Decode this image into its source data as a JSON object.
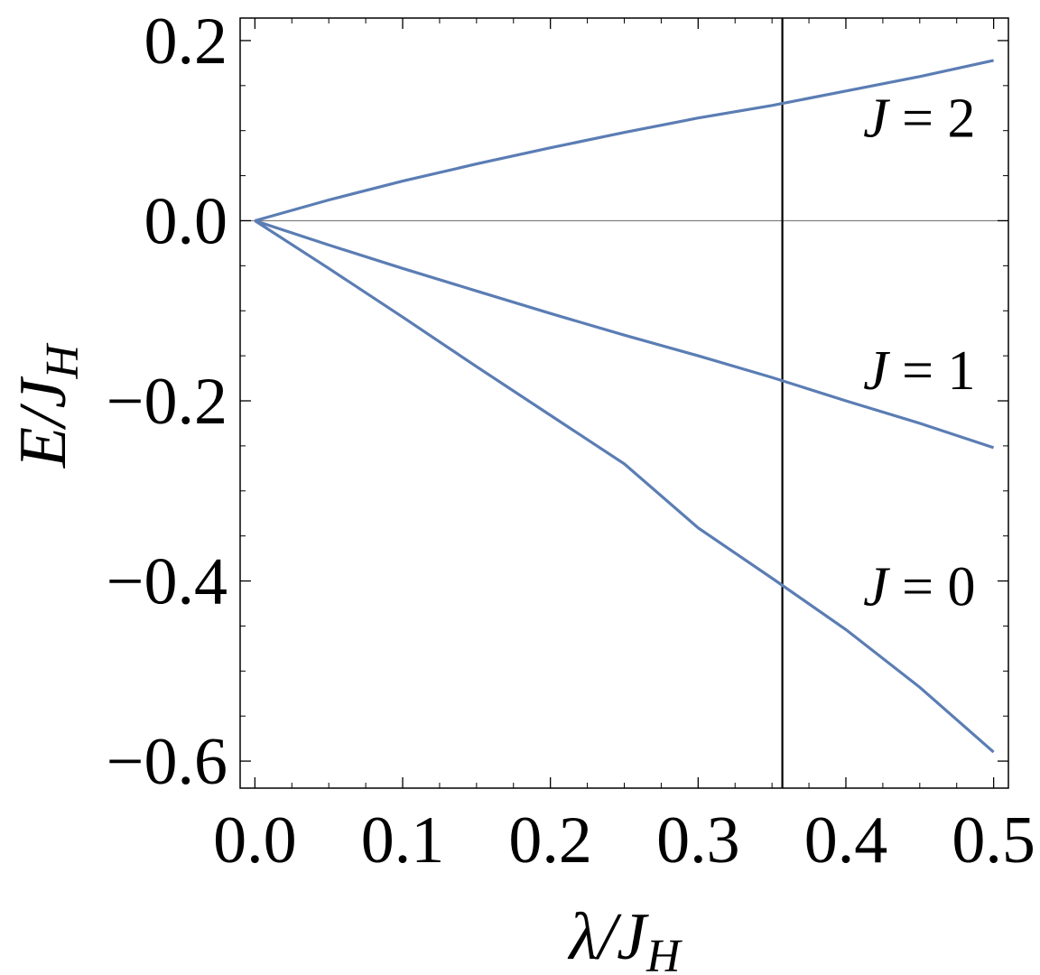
{
  "chart_data": {
    "type": "line",
    "xlabel": "λ/J_H",
    "ylabel": "E/J_H",
    "xlabel_parts": {
      "main": "λ/J",
      "sub": "H"
    },
    "ylabel_parts": {
      "main": "E/J",
      "sub": "H"
    },
    "xlim": [
      -0.01,
      0.51
    ],
    "ylim": [
      -0.63,
      0.225
    ],
    "x_ticks": [
      0.0,
      0.1,
      0.2,
      0.3,
      0.4,
      0.5
    ],
    "x_tick_labels": [
      "0.0",
      "0.1",
      "0.2",
      "0.3",
      "0.4",
      "0.5"
    ],
    "y_ticks": [
      0.2,
      0.0,
      -0.2,
      -0.4,
      -0.6
    ],
    "y_tick_labels": [
      "0.2",
      "0.0",
      "−0.2",
      "−0.4",
      "−0.6"
    ],
    "grid": false,
    "legend": "none",
    "zero_line": 0.0,
    "vertical_marker_x": 0.357,
    "series_color": "#5b7db4",
    "series": [
      {
        "label": {
          "italic": "J",
          "rest": " = 2"
        },
        "label_anchor": {
          "x": 0.43,
          "y": 0.115
        },
        "x": [
          0.0,
          0.05,
          0.1,
          0.15,
          0.2,
          0.25,
          0.3,
          0.35,
          0.4,
          0.45,
          0.5
        ],
        "y": [
          0.0,
          0.023,
          0.044,
          0.063,
          0.081,
          0.098,
          0.114,
          0.128,
          0.144,
          0.16,
          0.178
        ]
      },
      {
        "label": {
          "italic": "J",
          "rest": " = 1"
        },
        "label_anchor": {
          "x": 0.43,
          "y": -0.165
        },
        "x": [
          0.0,
          0.05,
          0.1,
          0.15,
          0.2,
          0.25,
          0.3,
          0.35,
          0.4,
          0.45,
          0.5
        ],
        "y": [
          0.0,
          -0.027,
          -0.053,
          -0.078,
          -0.103,
          -0.127,
          -0.15,
          -0.174,
          -0.2,
          -0.225,
          -0.252
        ]
      },
      {
        "label": {
          "italic": "J",
          "rest": " = 0"
        },
        "label_anchor": {
          "x": 0.43,
          "y": -0.405
        },
        "x": [
          0.0,
          0.05,
          0.1,
          0.15,
          0.2,
          0.25,
          0.3,
          0.35,
          0.4,
          0.45,
          0.5
        ],
        "y": [
          0.0,
          -0.053,
          -0.107,
          -0.162,
          -0.216,
          -0.27,
          -0.341,
          -0.397,
          -0.454,
          -0.518,
          -0.59
        ]
      }
    ]
  }
}
